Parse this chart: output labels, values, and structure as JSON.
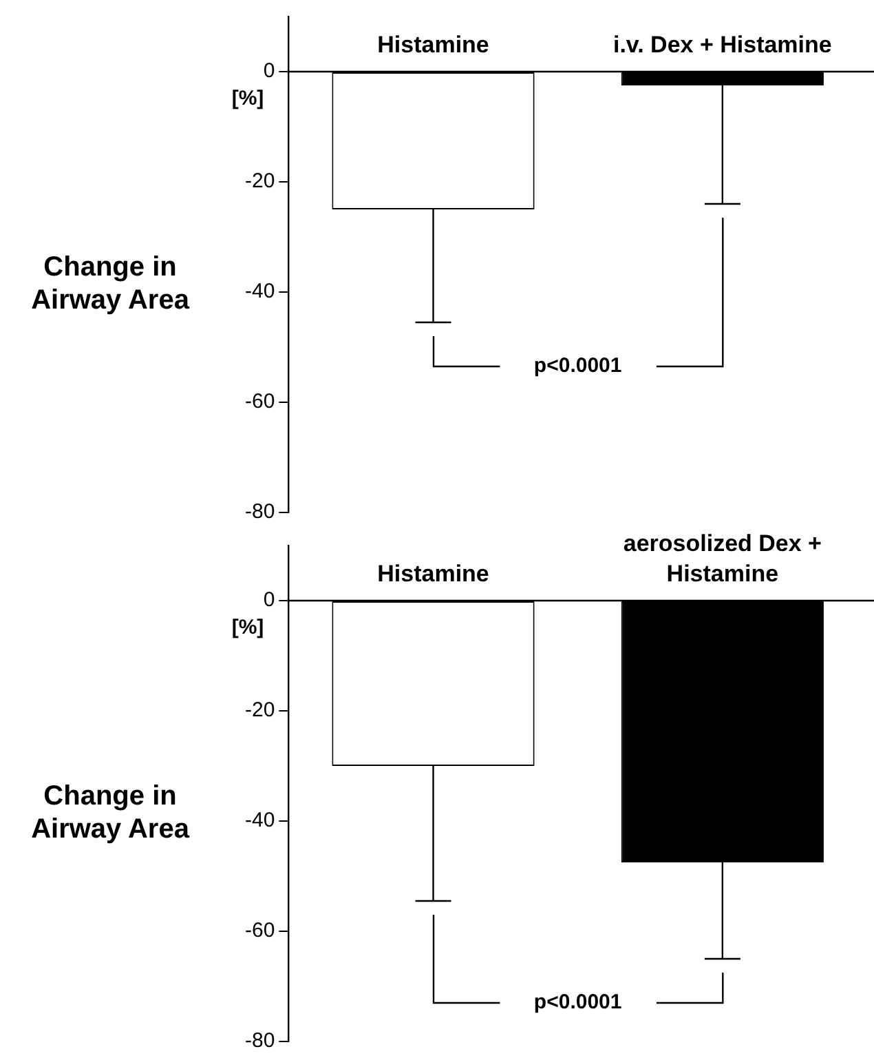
{
  "chart_data": [
    {
      "type": "bar",
      "ylabel": "Change in Airway Area",
      "categories": [
        "Histamine",
        "i.v. Dex + Histamine"
      ],
      "values": [
        -25,
        -2.5
      ],
      "colors": [
        "#ffffff",
        "#000000"
      ],
      "errors": [
        [
          -45.5,
          -25
        ],
        [
          -24,
          -2.5
        ]
      ],
      "ylim": [
        -80,
        10
      ],
      "yticks": [
        -80,
        -60,
        -40,
        -20,
        0
      ],
      "annotations": [
        "[%]",
        "p<0.0001"
      ]
    },
    {
      "type": "bar",
      "ylabel": "Change in Airway Area",
      "categories": [
        "Histamine",
        "aerosolized Dex + Histamine"
      ],
      "values": [
        -30,
        -47.5
      ],
      "colors": [
        "#ffffff",
        "#000000"
      ],
      "errors": [
        [
          -54.5,
          -30
        ],
        [
          -65,
          -47.5
        ]
      ],
      "ylim": [
        -80,
        10
      ],
      "yticks": [
        -80,
        -60,
        -40,
        -20,
        0
      ],
      "annotations": [
        "[%]",
        "p<0.0001"
      ]
    }
  ]
}
